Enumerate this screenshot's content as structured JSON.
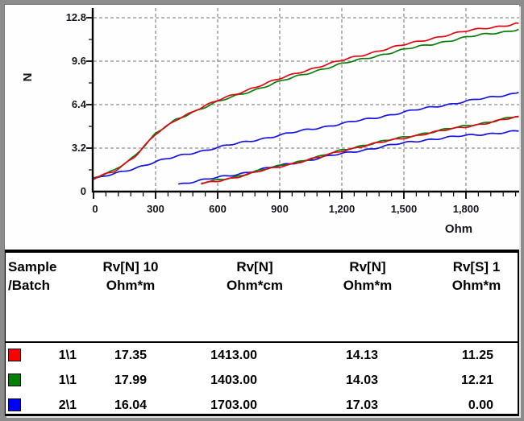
{
  "chart_data": {
    "type": "line",
    "title": "",
    "xlabel": "Ohm",
    "ylabel": "N",
    "xlim": [
      0,
      2055
    ],
    "ylim": [
      0,
      13.6
    ],
    "grid": "dashed-gray",
    "legend_position": "table-below",
    "x_ticks": {
      "values": [
        0,
        300,
        600,
        900,
        1200,
        1500,
        1800
      ],
      "labels": [
        "0",
        "300",
        "600",
        "900",
        "1,200",
        "1,500",
        "1,800"
      ]
    },
    "y_ticks": {
      "values": [
        0,
        3.2,
        6.4,
        9.6,
        12.8
      ],
      "labels": [
        "0",
        "3.2",
        "6.4",
        "9.6",
        "12.8"
      ]
    },
    "series": [
      {
        "sample": "2\\1",
        "segment": "A",
        "color": "#1515dd",
        "points": [
          [
            0,
            0.9
          ],
          [
            150,
            1.5
          ],
          [
            300,
            2.2
          ],
          [
            450,
            2.75
          ],
          [
            600,
            3.25
          ],
          [
            750,
            3.7
          ],
          [
            900,
            4.15
          ],
          [
            1050,
            4.6
          ],
          [
            1200,
            5.0
          ],
          [
            1350,
            5.4
          ],
          [
            1500,
            5.85
          ],
          [
            1650,
            6.25
          ],
          [
            1800,
            6.65
          ],
          [
            1950,
            7.0
          ],
          [
            2055,
            7.3
          ]
        ]
      },
      {
        "sample": "1\\1",
        "segment": "A",
        "color": "#0a7e0a",
        "points": [
          [
            0,
            0.95
          ],
          [
            100,
            1.55
          ],
          [
            200,
            2.65
          ],
          [
            300,
            4.25
          ],
          [
            400,
            5.3
          ],
          [
            500,
            6.0
          ],
          [
            600,
            6.6
          ],
          [
            700,
            7.1
          ],
          [
            800,
            7.6
          ],
          [
            900,
            8.1
          ],
          [
            1000,
            8.55
          ],
          [
            1100,
            9.0
          ],
          [
            1200,
            9.4
          ],
          [
            1300,
            9.75
          ],
          [
            1400,
            10.1
          ],
          [
            1500,
            10.45
          ],
          [
            1600,
            10.75
          ],
          [
            1700,
            11.05
          ],
          [
            1800,
            11.35
          ],
          [
            1900,
            11.6
          ],
          [
            2000,
            11.8
          ],
          [
            2055,
            11.95
          ]
        ]
      },
      {
        "sample": "1\\1",
        "segment": "A",
        "color": "#e30613",
        "points": [
          [
            0,
            0.95
          ],
          [
            100,
            1.5
          ],
          [
            200,
            2.6
          ],
          [
            300,
            4.2
          ],
          [
            400,
            5.3
          ],
          [
            500,
            6.05
          ],
          [
            600,
            6.7
          ],
          [
            700,
            7.25
          ],
          [
            800,
            7.8
          ],
          [
            900,
            8.3
          ],
          [
            1000,
            8.8
          ],
          [
            1100,
            9.25
          ],
          [
            1200,
            9.65
          ],
          [
            1300,
            10.05
          ],
          [
            1400,
            10.45
          ],
          [
            1500,
            10.8
          ],
          [
            1600,
            11.15
          ],
          [
            1700,
            11.5
          ],
          [
            1800,
            11.8
          ],
          [
            1900,
            12.05
          ],
          [
            2000,
            12.25
          ],
          [
            2055,
            12.4
          ]
        ]
      },
      {
        "sample": "2\\1",
        "segment": "B",
        "color": "#1515dd",
        "points": [
          [
            410,
            0.55
          ],
          [
            550,
            0.9
          ],
          [
            700,
            1.3
          ],
          [
            850,
            1.75
          ],
          [
            1000,
            2.2
          ],
          [
            1150,
            2.65
          ],
          [
            1300,
            3.05
          ],
          [
            1450,
            3.45
          ],
          [
            1600,
            3.8
          ],
          [
            1750,
            4.05
          ],
          [
            1900,
            4.25
          ],
          [
            2055,
            4.45
          ]
        ]
      },
      {
        "sample": "1\\1",
        "segment": "B",
        "color": "#0a7e0a",
        "points": [
          [
            520,
            0.6
          ],
          [
            700,
            1.15
          ],
          [
            900,
            1.9
          ],
          [
            1100,
            2.6
          ],
          [
            1200,
            3.05
          ],
          [
            1300,
            3.4
          ],
          [
            1450,
            3.85
          ],
          [
            1600,
            4.3
          ],
          [
            1750,
            4.7
          ],
          [
            1900,
            5.1
          ],
          [
            2055,
            5.55
          ]
        ]
      },
      {
        "sample": "1\\1",
        "segment": "B",
        "color": "#e30613",
        "points": [
          [
            520,
            0.55
          ],
          [
            700,
            1.1
          ],
          [
            900,
            1.85
          ],
          [
            1100,
            2.55
          ],
          [
            1200,
            3.0
          ],
          [
            1300,
            3.35
          ],
          [
            1450,
            3.8
          ],
          [
            1600,
            4.25
          ],
          [
            1750,
            4.65
          ],
          [
            1900,
            5.05
          ],
          [
            2055,
            5.5
          ]
        ]
      }
    ]
  },
  "table": {
    "headers": [
      {
        "line1": "Sample",
        "line2": "/Batch"
      },
      {
        "line1": "Rv[N] 10",
        "line2": "Ohm*m"
      },
      {
        "line1": "Rv[N]",
        "line2": "Ohm*cm"
      },
      {
        "line1": "Rv[N]",
        "line2": "Ohm*m"
      },
      {
        "line1": "Rv[S] 1",
        "line2": "Ohm*m"
      }
    ],
    "rows": [
      {
        "color": "#ff0000",
        "sample": "1\\1",
        "rv_n_10": "17.35",
        "rv_n_cm": "1413.00",
        "rv_n_m": "14.13",
        "rv_s_1": "11.25"
      },
      {
        "color": "#008000",
        "sample": "1\\1",
        "rv_n_10": "17.99",
        "rv_n_cm": "1403.00",
        "rv_n_m": "14.03",
        "rv_s_1": "12.21"
      },
      {
        "color": "#0000ff",
        "sample": "2\\1",
        "rv_n_10": "16.04",
        "rv_n_cm": "1703.00",
        "rv_n_m": "17.03",
        "rv_s_1": "0.00"
      }
    ]
  }
}
